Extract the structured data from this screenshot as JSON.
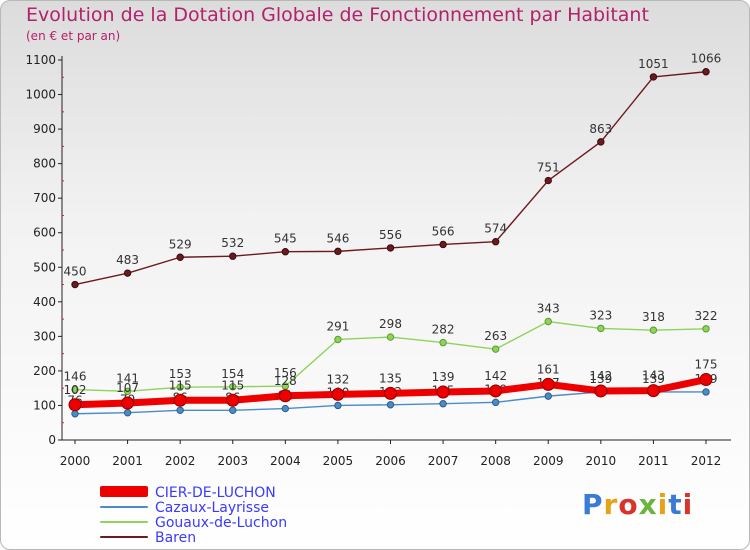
{
  "header": {
    "title": "Evolution de la Dotation Globale de Fonctionnement par Habitant",
    "subtitle": "(en € et par an)"
  },
  "logo": {
    "text": "Proxiti",
    "colors": [
      "#3a7bd5",
      "#e8a21a",
      "#d9342b",
      "#6cb33f",
      "#e8a21a",
      "#3a7bd5",
      "#d9342b"
    ]
  },
  "chart_data": {
    "type": "line",
    "title": "Evolution de la Dotation Globale de Fonctionnement par Habitant",
    "subtitle": "(en € et par an)",
    "xlabel": "",
    "ylabel": "",
    "categories": [
      "2000",
      "2001",
      "2002",
      "2003",
      "2004",
      "2005",
      "2006",
      "2007",
      "2008",
      "2009",
      "2010",
      "2011",
      "2012"
    ],
    "ylim": [
      0,
      1100
    ],
    "yticks": [
      0,
      100,
      200,
      300,
      400,
      500,
      600,
      700,
      800,
      900,
      1000,
      1100
    ],
    "grid": false,
    "legend_position": "bottom-left",
    "series": [
      {
        "name": "Baren",
        "color": "#6b1a1f",
        "values": [
          450,
          483,
          529,
          532,
          545,
          546,
          556,
          566,
          574,
          751,
          863,
          1051,
          1066
        ],
        "labels": [
          "450",
          "483",
          "529",
          "532",
          "545",
          "546",
          "556",
          "566",
          "574",
          "751",
          "863",
          "1051",
          "1066"
        ]
      },
      {
        "name": "Gouaux-de-Luchon",
        "color": "#8fd35a",
        "values": [
          146,
          141,
          153,
          154,
          156,
          291,
          298,
          282,
          263,
          343,
          323,
          318,
          322
        ],
        "labels": [
          "146",
          "141",
          "153",
          "154",
          "156",
          "291",
          "298",
          "282",
          "263",
          "343",
          "323",
          "318",
          "322"
        ]
      },
      {
        "name": "Cazaux-Layrisse",
        "color": "#4a8cc8",
        "values": [
          76,
          79,
          86,
          86,
          91,
          100,
          102,
          105,
          109,
          127,
          139,
          139,
          139
        ],
        "labels": [
          "76",
          "79",
          "86",
          "86",
          "91",
          "100",
          "102",
          "105",
          "109",
          "127",
          "139",
          "139",
          "139"
        ]
      },
      {
        "name": "CIER-DE-LUCHON",
        "color": "#ee0000",
        "values": [
          102,
          107,
          115,
          115,
          128,
          132,
          135,
          139,
          142,
          161,
          142,
          143,
          175
        ],
        "labels": [
          "102",
          "107",
          "115",
          "115",
          "128",
          "132",
          "135",
          "139",
          "142",
          "161",
          "142",
          "143",
          "175"
        ]
      }
    ],
    "legend": [
      "CIER-DE-LUCHON",
      "Cazaux-Layrisse",
      "Gouaux-de-Luchon",
      "Baren"
    ]
  }
}
